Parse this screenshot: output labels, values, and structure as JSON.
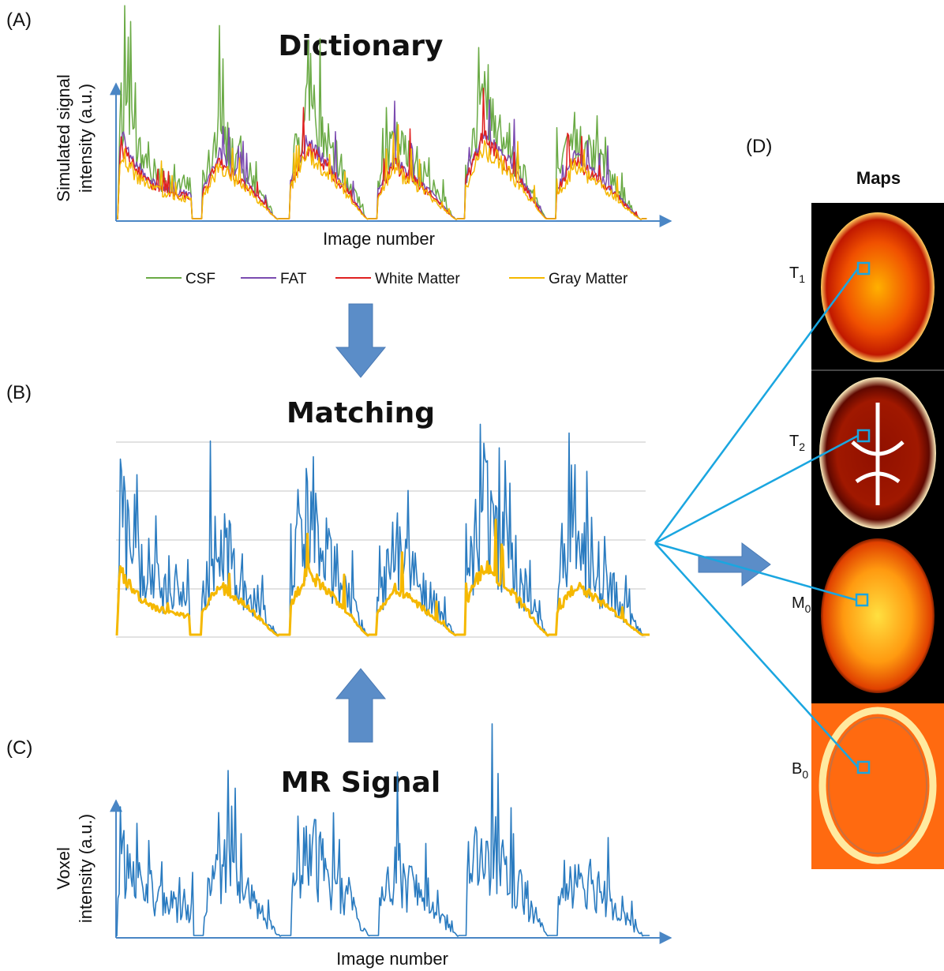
{
  "panel_a": {
    "label": "(A)",
    "title": "Dictionary",
    "y_axis_label": [
      "Simulated signal",
      "intensity (a.u.)"
    ],
    "x_axis_label": "Image number",
    "legend": [
      {
        "name": "CSF",
        "color": "#6aaa45"
      },
      {
        "name": "FAT",
        "color": "#7b4bb0"
      },
      {
        "name": "White Matter",
        "color": "#e02020"
      },
      {
        "name": "Gray Matter",
        "color": "#f5b800"
      }
    ]
  },
  "panel_b": {
    "label": "(B)",
    "title": "Matching"
  },
  "panel_c": {
    "label": "(C)",
    "title": "MR Signal",
    "y_axis_label": [
      "Voxel",
      "intensity (a.u.)"
    ],
    "x_axis_label": "Image number"
  },
  "panel_d": {
    "label": "(D)",
    "title": "Maps",
    "maps": [
      {
        "symbol": "T",
        "subscript": "1"
      },
      {
        "symbol": "T",
        "subscript": "2"
      },
      {
        "symbol": "M",
        "subscript": "0"
      },
      {
        "symbol": "B",
        "subscript": "0"
      }
    ]
  }
}
